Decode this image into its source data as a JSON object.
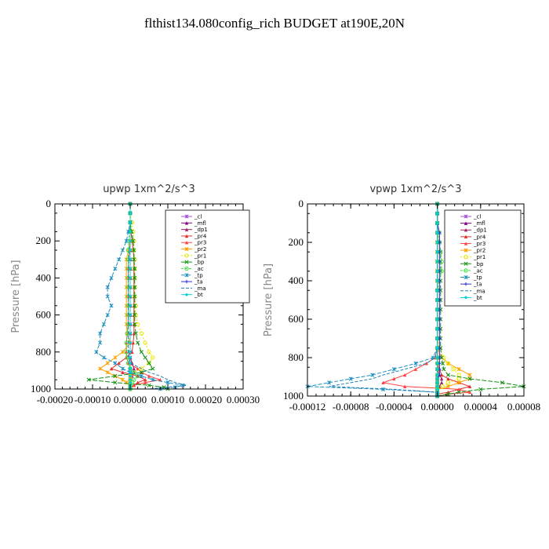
{
  "page_title": "flthist134.080config_rich  BUDGET at190E,20N",
  "colors": {
    "_cl": "#a050d0",
    "_mfl": "#800080",
    "_dp1": "#a0206a",
    "_pr4": "#e03030",
    "_pr3": "#ff4040",
    "_pr2": "#ffa000",
    "_pr1": "#e8e800",
    "_bp": "#109010",
    "_ac": "#40e040",
    "_tp": "#1e90c0",
    "_ta": "#3030d0",
    "_ma": "#2080b0",
    "_bt": "#00d0d0"
  },
  "chart_data": [
    {
      "type": "line",
      "title": "upwp   1xm^2/s^3",
      "ylabel": "Pressure [hPa]",
      "xlim": [
        -0.0002,
        0.0003
      ],
      "ylim": [
        1000,
        0
      ],
      "xticks": [
        -0.0002,
        -0.0001,
        0.0,
        0.0001,
        0.0002,
        0.0003
      ],
      "xtick_labels": [
        "-0.00020",
        "-0.00010",
        "0.00000",
        "0.00010",
        "0.00020",
        "0.00030"
      ],
      "yticks": [
        0,
        200,
        400,
        600,
        800,
        1000
      ],
      "ytick_labels": [
        "0",
        "200",
        "400",
        "600",
        "800",
        "1000"
      ],
      "legend_position": "top-right",
      "legend": [
        "_cl",
        "_mfl",
        "_dp1",
        "_pr4",
        "_pr3",
        "_pr2",
        "_pr1",
        "_bp",
        "_ac",
        "_tp",
        "_ta",
        "_ma",
        "_bt"
      ],
      "pressure": [
        0,
        50,
        100,
        150,
        200,
        250,
        300,
        350,
        400,
        450,
        500,
        550,
        600,
        650,
        700,
        750,
        800,
        830,
        860,
        890,
        910,
        930,
        950,
        965,
        980,
        990,
        1000
      ],
      "series": [
        {
          "name": "_cl",
          "values": [
            0,
            0,
            0,
            0,
            0,
            0,
            0,
            0,
            0,
            0,
            0,
            0,
            0,
            0,
            0,
            0,
            0,
            0,
            0,
            0,
            0,
            0,
            0,
            0,
            0,
            0,
            0
          ]
        },
        {
          "name": "_mfl",
          "values": [
            0,
            0,
            0,
            0,
            0,
            0,
            0,
            0,
            0,
            0,
            0,
            0,
            0,
            0,
            0,
            0,
            0,
            0,
            0,
            0,
            0,
            0,
            0,
            0,
            0,
            0,
            0
          ]
        },
        {
          "name": "_dp1",
          "values": [
            0,
            0,
            0,
            0,
            0,
            0,
            0,
            0,
            0,
            0,
            0,
            0,
            0,
            0,
            0,
            0,
            0,
            0,
            5e-06,
            1e-05,
            1e-05,
            5e-06,
            0,
            0,
            0,
            0,
            0
          ]
        },
        {
          "name": "_pr4",
          "values": [
            0,
            0,
            0,
            2e-06,
            5e-06,
            8e-06,
            1e-05,
            1e-05,
            1e-05,
            1e-05,
            1e-05,
            1e-05,
            1e-05,
            1e-05,
            1e-05,
            8e-06,
            5e-06,
            -1e-05,
            -3e-05,
            -5e-05,
            -2e-05,
            2e-05,
            4e-05,
            2e-05,
            1e-05,
            0,
            0
          ]
        },
        {
          "name": "_pr3",
          "values": [
            0,
            0,
            0,
            0,
            0,
            -2e-06,
            -4e-06,
            -5e-06,
            -5e-06,
            -5e-06,
            -5e-06,
            -5e-06,
            -5e-06,
            -5e-06,
            -8e-06,
            -1e-05,
            -1e-05,
            -1e-05,
            -5e-06,
            2e-05,
            3e-05,
            5e-05,
            8e-05,
            4e-05,
            1e-05,
            0,
            0
          ]
        },
        {
          "name": "_pr2",
          "values": [
            0,
            0,
            0,
            0,
            0,
            -5e-06,
            -1e-05,
            -1e-05,
            -1e-05,
            -1e-05,
            -1e-05,
            -1e-05,
            -1e-05,
            -1e-05,
            -8e-06,
            0,
            -2e-05,
            -4e-05,
            -6e-05,
            -8e-05,
            -6e-05,
            -4e-05,
            -2e-05,
            -1e-05,
            0,
            0,
            0
          ]
        },
        {
          "name": "_pr1",
          "values": [
            0,
            0,
            5e-06,
            8e-06,
            1e-05,
            1e-05,
            1.2e-05,
            1.2e-05,
            1.2e-05,
            1.2e-05,
            1.2e-05,
            1.5e-05,
            1.5e-05,
            2e-05,
            3e-05,
            4e-05,
            5e-05,
            6e-05,
            5e-05,
            3e-05,
            1e-05,
            0,
            0,
            0,
            0,
            0,
            0
          ]
        },
        {
          "name": "_bp",
          "values": [
            0,
            0,
            0,
            4e-06,
            8e-06,
            1e-05,
            1e-05,
            1.2e-05,
            1.2e-05,
            1.2e-05,
            1.2e-05,
            1.2e-05,
            1.2e-05,
            1.2e-05,
            1.5e-05,
            2e-05,
            3e-05,
            4e-05,
            5e-05,
            6e-05,
            3e-05,
            -4e-05,
            -0.00011,
            -4e-05,
            5e-05,
            9e-05,
            0.0001
          ]
        },
        {
          "name": "_ac",
          "values": [
            0,
            0,
            0,
            -2e-06,
            -4e-06,
            -5e-06,
            -5e-06,
            -5e-06,
            -5e-06,
            -5e-06,
            -5e-06,
            -5e-06,
            -5e-06,
            -5e-06,
            -8e-06,
            -1e-05,
            -1e-05,
            -8e-06,
            -5e-06,
            0,
            1e-05,
            2e-05,
            1e-05,
            5e-06,
            0,
            0,
            0
          ]
        },
        {
          "name": "_tp",
          "values": [
            0,
            0,
            0,
            -5e-06,
            -1e-05,
            -2e-05,
            -3e-05,
            -4e-05,
            -5e-05,
            -6e-05,
            -6e-05,
            -5e-05,
            -6e-05,
            -7e-05,
            -8e-05,
            -8e-05,
            -9e-05,
            -7e-05,
            -4e-05,
            -2e-05,
            0,
            3e-05,
            6e-05,
            0.0001,
            0.00014,
            0.00012,
            8e-05
          ]
        },
        {
          "name": "_ta",
          "values": [
            0,
            0,
            0,
            0,
            0,
            0,
            0,
            0,
            0,
            0,
            0,
            0,
            0,
            0,
            0,
            0,
            0,
            0,
            0,
            0,
            0,
            0,
            0,
            0,
            0,
            0,
            0
          ]
        },
        {
          "name": "_ma",
          "values": [
            0,
            0,
            0,
            0,
            0,
            -2e-06,
            -4e-06,
            -5e-06,
            -5e-06,
            -5e-06,
            -5e-06,
            -5e-06,
            -5e-06,
            -5e-06,
            -5e-06,
            -5e-06,
            -5e-06,
            -5e-06,
            0,
            3e-05,
            5e-05,
            8e-05,
            0.0001,
            0.00012,
            0.00015,
            0.0001,
            5e-05
          ]
        },
        {
          "name": "_bt",
          "values": [
            0,
            0,
            0,
            0,
            0,
            0,
            0,
            0,
            0,
            0,
            0,
            0,
            0,
            0,
            0,
            0,
            0,
            0,
            0,
            0,
            0,
            0,
            0,
            0,
            0,
            0,
            0
          ]
        }
      ]
    },
    {
      "type": "line",
      "title": "vpwp   1xm^2/s^3",
      "ylabel": "Pressure [hPa]",
      "xlim": [
        -0.00012,
        8e-05
      ],
      "ylim": [
        1000,
        0
      ],
      "xticks": [
        -0.00012,
        -8e-05,
        -4e-05,
        0.0,
        4e-05,
        8e-05
      ],
      "xtick_labels": [
        "-0.00012",
        "-0.00008",
        "-0.00004",
        "0.00000",
        "0.00004",
        "0.00008"
      ],
      "yticks": [
        0,
        200,
        400,
        600,
        800,
        1000
      ],
      "ytick_labels": [
        "0",
        "200",
        "400",
        "600",
        "800",
        "1000"
      ],
      "legend_position": "top-right",
      "legend": [
        "_cl",
        "_mfl",
        "_dp1",
        "_pr4",
        "_pr3",
        "_pr2",
        "_pr1",
        "_bp",
        "_ac",
        "_tp",
        "_ta",
        "_ma",
        "_bt"
      ],
      "pressure": [
        0,
        50,
        100,
        150,
        200,
        250,
        300,
        350,
        400,
        450,
        500,
        550,
        600,
        650,
        700,
        750,
        800,
        830,
        860,
        890,
        910,
        930,
        950,
        965,
        980,
        990,
        1000
      ],
      "series": [
        {
          "name": "_cl",
          "values": [
            0,
            0,
            0,
            0,
            0,
            0,
            0,
            0,
            0,
            0,
            0,
            0,
            0,
            0,
            0,
            0,
            0,
            0,
            0,
            0,
            0,
            0,
            0,
            0,
            0,
            0,
            0
          ]
        },
        {
          "name": "_mfl",
          "values": [
            0,
            0,
            0,
            0,
            0,
            0,
            0,
            0,
            0,
            0,
            0,
            0,
            0,
            0,
            0,
            0,
            0,
            0,
            0,
            0,
            0,
            0,
            0,
            0,
            0,
            0,
            0
          ]
        },
        {
          "name": "_dp1",
          "values": [
            0,
            0,
            0,
            0,
            0,
            0,
            0,
            0,
            0,
            0,
            0,
            0,
            0,
            0,
            0,
            0,
            0,
            0,
            0,
            2e-06,
            4e-06,
            4e-06,
            2e-06,
            0,
            0,
            0,
            0
          ]
        },
        {
          "name": "_pr4",
          "values": [
            0,
            0,
            0,
            0,
            0,
            0,
            0,
            0,
            0,
            0,
            0,
            0,
            0,
            0,
            0,
            0,
            0,
            0,
            2e-06,
            4e-06,
            1e-05,
            2e-05,
            3e-05,
            2e-05,
            1e-05,
            0,
            0
          ]
        },
        {
          "name": "_pr3",
          "values": [
            0,
            0,
            0,
            0,
            0,
            0,
            0,
            0,
            0,
            0,
            0,
            0,
            0,
            0,
            0,
            0,
            -2e-06,
            -1e-05,
            -2e-05,
            -3e-05,
            -4e-05,
            -5e-05,
            -3e-05,
            2e-05,
            3e-05,
            1e-05,
            0
          ]
        },
        {
          "name": "_pr2",
          "values": [
            0,
            0,
            0,
            0,
            0,
            0,
            0,
            0,
            0,
            0,
            0,
            0,
            0,
            0,
            0,
            0,
            4e-06,
            1e-05,
            2e-05,
            3e-05,
            3e-05,
            2e-05,
            1e-05,
            0,
            0,
            0,
            0
          ]
        },
        {
          "name": "_pr1",
          "values": [
            0,
            0,
            0,
            0,
            0,
            0,
            0,
            0,
            0,
            0,
            0,
            0,
            0,
            0,
            0,
            2e-06,
            6e-06,
            1e-05,
            1.5e-05,
            2e-05,
            2e-05,
            1e-05,
            5e-06,
            0,
            0,
            0,
            0
          ]
        },
        {
          "name": "_bp",
          "values": [
            0,
            0,
            0,
            2e-06,
            2e-06,
            3e-06,
            3e-06,
            3e-06,
            3e-06,
            3e-06,
            3e-06,
            3e-06,
            3e-06,
            3e-06,
            3e-06,
            3e-06,
            4e-06,
            5e-06,
            6e-06,
            1e-05,
            3e-05,
            6e-05,
            8e-05,
            4e-05,
            2e-05,
            1e-05,
            0
          ]
        },
        {
          "name": "_ac",
          "values": [
            0,
            0,
            0,
            0,
            2e-06,
            3e-06,
            4e-06,
            4e-06,
            2e-06,
            0,
            0,
            0,
            0,
            0,
            0,
            0,
            0,
            0,
            0,
            0,
            0,
            0,
            0,
            0,
            0,
            0,
            0
          ]
        },
        {
          "name": "_tp",
          "values": [
            0,
            0,
            0,
            0,
            0,
            0,
            0,
            0,
            0,
            0,
            0,
            0,
            0,
            0,
            0,
            0,
            -4e-06,
            -2e-05,
            -4e-05,
            -6e-05,
            -8e-05,
            -0.0001,
            -0.00012,
            -5e-05,
            0,
            0,
            0
          ]
        },
        {
          "name": "_ta",
          "values": [
            0,
            0,
            0,
            2e-06,
            2e-06,
            2e-06,
            2e-06,
            2e-06,
            2e-06,
            2e-06,
            2e-06,
            2e-06,
            2e-06,
            2e-06,
            2e-06,
            2e-06,
            2e-06,
            2e-06,
            2e-06,
            2e-06,
            0,
            0,
            0,
            0,
            0,
            0,
            0
          ]
        },
        {
          "name": "_ma",
          "values": [
            0,
            0,
            0,
            0,
            0,
            0,
            0,
            0,
            0,
            0,
            0,
            0,
            0,
            0,
            0,
            0,
            -2e-06,
            -1e-05,
            -3e-05,
            -5e-05,
            -6e-05,
            -8e-05,
            -0.0001,
            -4e-05,
            0,
            0,
            0
          ]
        },
        {
          "name": "_bt",
          "values": [
            0,
            0,
            0,
            0,
            0,
            0,
            0,
            0,
            0,
            0,
            0,
            0,
            0,
            0,
            0,
            0,
            0,
            0,
            0,
            0,
            0,
            0,
            0,
            0,
            0,
            0,
            0
          ]
        }
      ]
    }
  ]
}
